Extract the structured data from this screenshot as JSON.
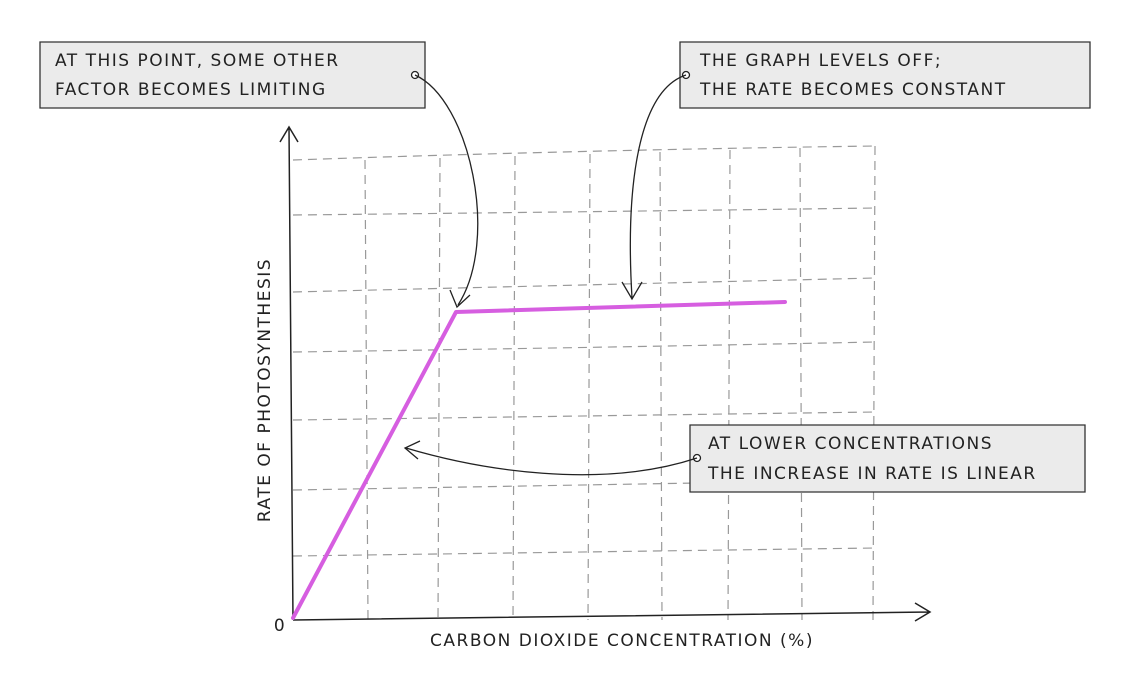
{
  "axes": {
    "y_label": "RATE OF PHOTOSYNTHESIS",
    "x_label": "CARBON DIOXIDE CONCENTRATION (%)",
    "origin": "0"
  },
  "callouts": [
    {
      "lines": [
        "AT THIS POINT, SOME OTHER",
        "FACTOR BECOMES LIMITING"
      ]
    },
    {
      "lines": [
        "THE GRAPH LEVELS OFF;",
        "THE RATE BECOMES CONSTANT"
      ]
    },
    {
      "lines": [
        "AT LOWER CONCENTRATIONS",
        "THE INCREASE IN RATE IS LINEAR"
      ]
    }
  ]
}
